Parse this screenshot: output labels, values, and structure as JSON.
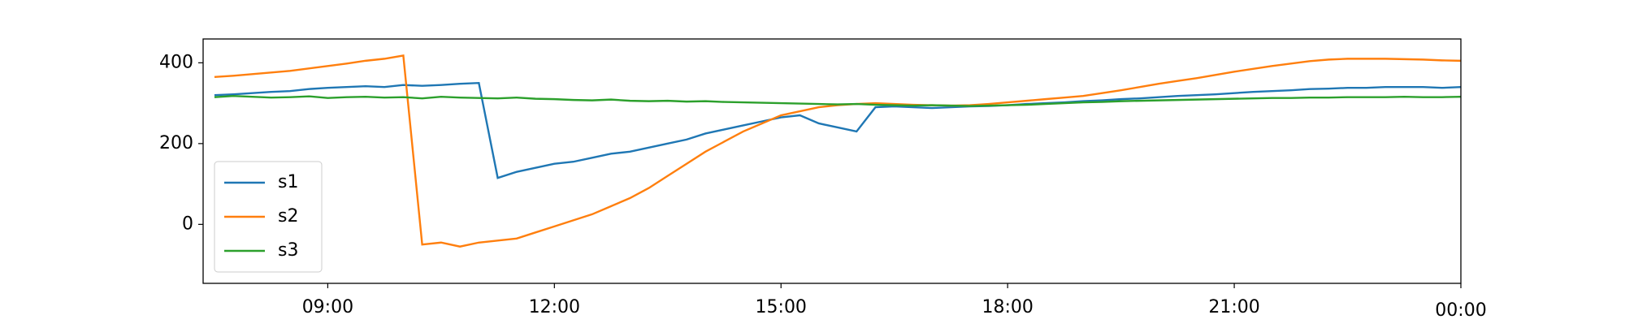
{
  "chart_data": {
    "type": "line",
    "x": [
      "07:30",
      "07:45",
      "08:00",
      "08:15",
      "08:30",
      "08:45",
      "09:00",
      "09:15",
      "09:30",
      "09:45",
      "10:00",
      "10:15",
      "10:30",
      "10:45",
      "11:00",
      "11:15",
      "11:30",
      "11:45",
      "12:00",
      "12:15",
      "12:30",
      "12:45",
      "13:00",
      "13:15",
      "13:30",
      "13:45",
      "14:00",
      "14:15",
      "14:30",
      "14:45",
      "15:00",
      "15:15",
      "15:30",
      "15:45",
      "16:00",
      "16:15",
      "16:30",
      "16:45",
      "17:00",
      "17:15",
      "17:30",
      "17:45",
      "18:00",
      "18:15",
      "18:30",
      "18:45",
      "19:00",
      "19:15",
      "19:30",
      "19:45",
      "20:00",
      "20:15",
      "20:30",
      "20:45",
      "21:00",
      "21:15",
      "21:30",
      "21:45",
      "22:00",
      "22:15",
      "22:30",
      "22:45",
      "23:00",
      "23:15",
      "23:30",
      "23:45",
      "00:00"
    ],
    "series": [
      {
        "name": "s1",
        "color": "#1f77b4",
        "values": [
          320,
          322,
          325,
          328,
          330,
          335,
          338,
          340,
          342,
          340,
          345,
          343,
          345,
          348,
          350,
          115,
          130,
          140,
          150,
          155,
          165,
          175,
          180,
          190,
          200,
          210,
          225,
          235,
          245,
          255,
          265,
          270,
          250,
          240,
          230,
          290,
          292,
          290,
          288,
          290,
          292,
          293,
          295,
          298,
          300,
          302,
          305,
          307,
          310,
          312,
          315,
          318,
          320,
          322,
          325,
          328,
          330,
          332,
          335,
          336,
          338,
          338,
          340,
          340,
          340,
          338,
          340
        ]
      },
      {
        "name": "s2",
        "color": "#ff7f0e",
        "values": [
          365,
          368,
          372,
          376,
          380,
          386,
          392,
          398,
          405,
          410,
          418,
          -50,
          -45,
          -55,
          -45,
          -40,
          -35,
          -20,
          -5,
          10,
          25,
          45,
          65,
          90,
          120,
          150,
          180,
          205,
          230,
          250,
          270,
          280,
          290,
          295,
          298,
          300,
          298,
          296,
          295,
          294,
          295,
          298,
          302,
          306,
          310,
          314,
          318,
          325,
          332,
          340,
          348,
          355,
          362,
          370,
          378,
          385,
          392,
          398,
          404,
          408,
          410,
          410,
          410,
          409,
          408,
          406,
          405
        ]
      },
      {
        "name": "s3",
        "color": "#2ca02c",
        "values": [
          315,
          318,
          316,
          314,
          315,
          317,
          313,
          315,
          316,
          314,
          315,
          312,
          316,
          314,
          313,
          312,
          314,
          311,
          310,
          308,
          307,
          309,
          306,
          305,
          306,
          304,
          305,
          303,
          302,
          301,
          300,
          299,
          298,
          297,
          298,
          296,
          295,
          294,
          295,
          294,
          293,
          294,
          295,
          296,
          298,
          300,
          302,
          303,
          305,
          306,
          307,
          308,
          309,
          310,
          311,
          312,
          313,
          313,
          314,
          314,
          315,
          315,
          315,
          316,
          315,
          315,
          316
        ]
      }
    ],
    "xlim": [
      "07:21",
      "00:00"
    ],
    "xticks": [
      "09:00",
      "12:00",
      "15:00",
      "18:00",
      "21:00",
      "00:00"
    ],
    "ylim": [
      -146,
      459
    ],
    "yticks": [
      0,
      200,
      400
    ],
    "legend": "lower left",
    "grid": false
  }
}
